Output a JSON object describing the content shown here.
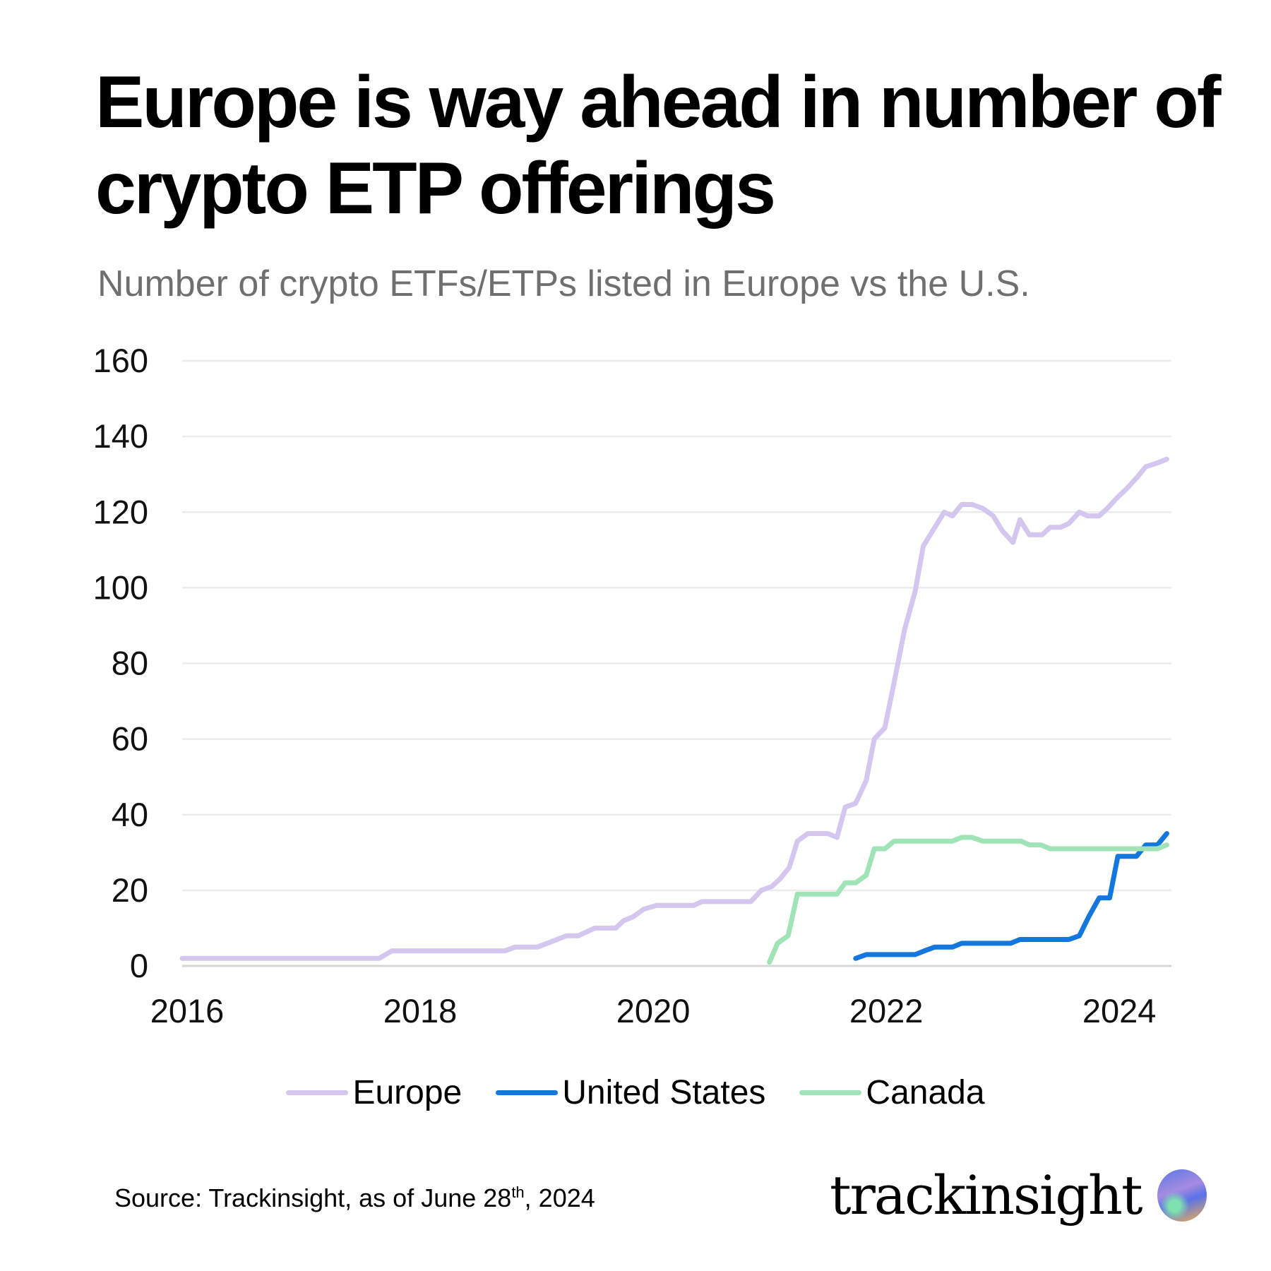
{
  "header": {
    "title": "Europe is way ahead in number of crypto ETP offerings",
    "subtitle": "Number of crypto ETFs/ETPs listed in Europe vs the U.S."
  },
  "chart_data": {
    "type": "line",
    "title": "Europe is way ahead in number of crypto ETP offerings",
    "subtitle": "Number of crypto ETFs/ETPs listed in Europe vs the U.S.",
    "xlabel": "",
    "ylabel": "",
    "xlim": [
      2016,
      2024.49
    ],
    "ylim": [
      0,
      160
    ],
    "x_ticks": [
      "2016",
      "2018",
      "2020",
      "2022",
      "2024"
    ],
    "y_ticks": [
      "0",
      "20",
      "40",
      "60",
      "80",
      "100",
      "120",
      "140",
      "160"
    ],
    "grid": "horizontal",
    "legend": "bottom",
    "series": [
      {
        "name": "Europe",
        "color": "#d4c6ee",
        "x": [
          2016.0,
          2017.69,
          2017.8,
          2018.77,
          2018.86,
          2019.05,
          2019.3,
          2019.4,
          2019.54,
          2019.72,
          2019.79,
          2019.87,
          2019.96,
          2020.07,
          2020.39,
          2020.46,
          2020.88,
          2020.97,
          2021.06,
          2021.13,
          2021.21,
          2021.28,
          2021.37,
          2021.54,
          2021.62,
          2021.69,
          2021.78,
          2021.87,
          2021.94,
          2022.03,
          2022.11,
          2022.2,
          2022.29,
          2022.36,
          2022.44,
          2022.54,
          2022.61,
          2022.69,
          2022.78,
          2022.87,
          2022.96,
          2023.04,
          2023.13,
          2023.19,
          2023.27,
          2023.38,
          2023.45,
          2023.54,
          2023.61,
          2023.7,
          2023.77,
          2023.87,
          2023.94,
          2024.03,
          2024.1,
          2024.19,
          2024.27,
          2024.37,
          2024.45
        ],
        "y": [
          2,
          2,
          4,
          4,
          5,
          5,
          8,
          8,
          10,
          10,
          12,
          13,
          15,
          16,
          16,
          17,
          17,
          20,
          21,
          23,
          26,
          33,
          35,
          35,
          34,
          42,
          43,
          49,
          60,
          63,
          75,
          89,
          99,
          111,
          115,
          120,
          119,
          122,
          122,
          121,
          119,
          115,
          112,
          118,
          114,
          114,
          116,
          116,
          117,
          120,
          119,
          119,
          121,
          124,
          126,
          129,
          132,
          133,
          134
        ]
      },
      {
        "name": "United States",
        "color": "#1477de",
        "x": [
          2021.78,
          2021.87,
          2022.29,
          2022.37,
          2022.46,
          2022.61,
          2022.69,
          2023.11,
          2023.19,
          2023.61,
          2023.7,
          2023.78,
          2023.87,
          2023.96,
          2024.03,
          2024.19,
          2024.27,
          2024.37,
          2024.45
        ],
        "y": [
          2,
          3,
          3,
          4,
          5,
          5,
          6,
          6,
          7,
          7,
          8,
          13,
          18,
          18,
          29,
          29,
          32,
          32,
          35
        ]
      },
      {
        "name": "Canada",
        "color": "#9fe3b6",
        "x": [
          2021.04,
          2021.11,
          2021.2,
          2021.28,
          2021.62,
          2021.69,
          2021.78,
          2021.87,
          2021.94,
          2022.03,
          2022.11,
          2022.61,
          2022.69,
          2022.78,
          2022.87,
          2023.2,
          2023.27,
          2023.37,
          2023.45,
          2024.37,
          2024.45
        ],
        "y": [
          1,
          6,
          8,
          19,
          19,
          22,
          22,
          24,
          31,
          31,
          33,
          33,
          34,
          34,
          33,
          33,
          32,
          32,
          31,
          31,
          32
        ]
      }
    ]
  },
  "source": {
    "prefix": "Source: Trackinsight, as of June 28",
    "sup": "th",
    "suffix": ", 2024"
  },
  "logo": {
    "text": "trackinsight"
  }
}
